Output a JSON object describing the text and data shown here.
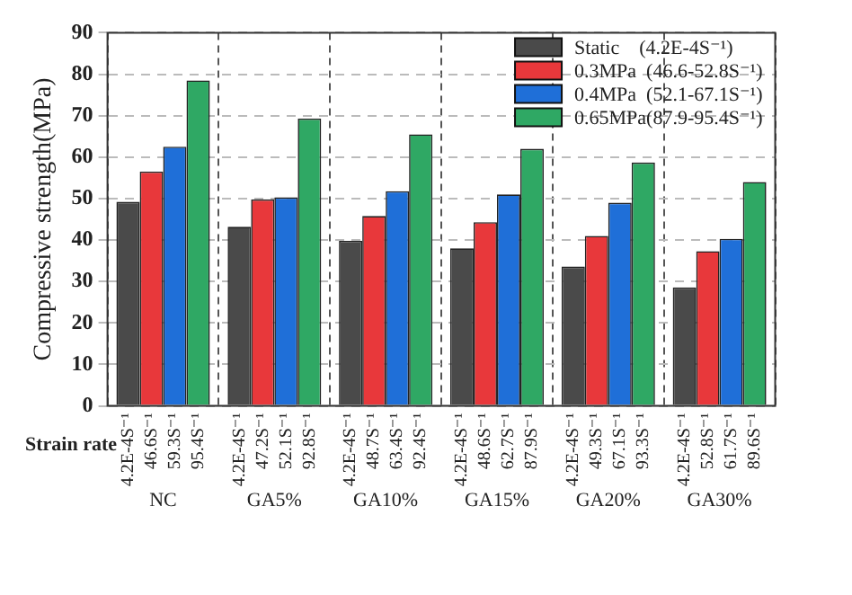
{
  "chart_data": {
    "type": "bar",
    "ylabel": "Compressive strength(MPa)",
    "categories": [
      "NC",
      "GA5%",
      "GA10%",
      "GA15%",
      "GA20%",
      "GA30%"
    ],
    "series": [
      {
        "name": "Static    (4.2E-4S⁻¹)",
        "color": "#4a4a4a",
        "values": [
          49.2,
          43.2,
          39.8,
          38.0,
          33.6,
          28.6
        ]
      },
      {
        "name": "0.3MPa  (46.6-52.8S⁻¹)",
        "color": "#e8383b",
        "values": [
          56.5,
          49.8,
          45.8,
          44.3,
          41.0,
          37.3
        ]
      },
      {
        "name": "0.4MPa  (52.1-67.1S⁻¹)",
        "color": "#1f6fd8",
        "values": [
          62.5,
          50.3,
          51.8,
          51.0,
          49.0,
          40.3
        ]
      },
      {
        "name": "0.65MPa(87.9-95.4S⁻¹)",
        "color": "#2fa864",
        "values": [
          78.5,
          69.3,
          65.5,
          62.0,
          58.7,
          54.0
        ]
      }
    ],
    "ylim": [
      0,
      90
    ],
    "yticks": [
      0,
      10,
      20,
      30,
      40,
      50,
      60,
      70,
      80,
      90
    ],
    "grid": true,
    "legend": "top right",
    "annotations": [
      "Strain rate",
      "4.2E-4S⁻¹",
      "46.6S⁻¹",
      "59.3S⁻¹",
      "95.4S⁻¹",
      "4.2E-4S⁻¹",
      "47.2S⁻¹",
      "52.1S⁻¹",
      "92.8S⁻¹",
      "4.2E-4S⁻¹",
      "48.7S⁻¹",
      "63.4S⁻¹",
      "92.4S⁻¹",
      "4.2E-4S⁻¹",
      "48.6S⁻¹",
      "62.7S⁻¹",
      "87.9S⁻¹",
      "4.2E-4S⁻¹",
      "49.3S⁻¹",
      "67.1S⁻¹",
      "93.3S⁻¹",
      "4.2E-4S⁻¹",
      "52.8S⁻¹",
      "61.7S⁻¹",
      "89.6S⁻¹"
    ]
  }
}
